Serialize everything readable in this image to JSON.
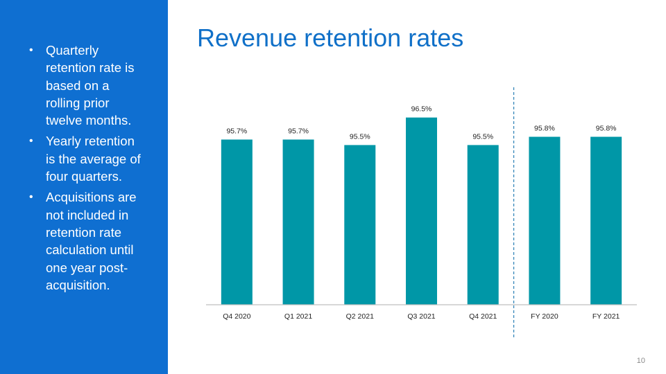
{
  "sidebar": {
    "bullets": [
      "Quarterly retention rate is based on a rolling prior twelve months.",
      "Yearly retention is the average of four quarters.",
      "Acquisitions are not included in retention rate calculation until one year post-acquisition."
    ],
    "bullet_glyph": "•"
  },
  "page_title": "Revenue retention rates",
  "page_number": "10",
  "colors": {
    "sidebar": "#0f6fd1",
    "title": "#1070c8",
    "bar": "#0097a7",
    "divider": "#2a7fb5"
  },
  "chart_data": {
    "type": "bar",
    "title": "",
    "categories": [
      "Q4 2020",
      "Q1 2021",
      "Q2 2021",
      "Q3 2021",
      "Q4 2021",
      "FY 2020",
      "FY 2021"
    ],
    "values": [
      95.7,
      95.7,
      95.5,
      96.5,
      95.5,
      95.8,
      95.8
    ],
    "data_labels": [
      "95.7%",
      "95.7%",
      "95.5%",
      "96.5%",
      "95.5%",
      "95.8%",
      "95.8%"
    ],
    "xlabel": "",
    "ylabel": "",
    "ylim": [
      89.7,
      97.8
    ],
    "grid": false,
    "legend": "none",
    "separator_after_category": "Q4 2021"
  }
}
